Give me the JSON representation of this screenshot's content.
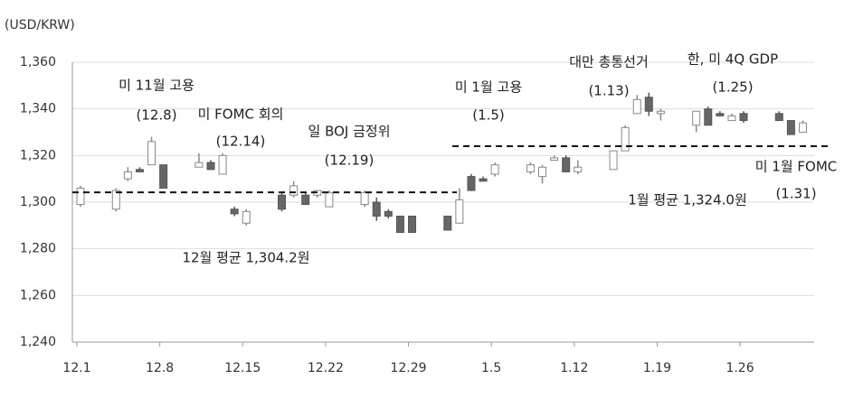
{
  "chart_data": {
    "type": "candlestick",
    "y_label": "(USD/KRW)",
    "ylim": [
      1240,
      1360
    ],
    "yticks": [
      {
        "value": 1240,
        "label": "1,240"
      },
      {
        "value": 1260,
        "label": "1,260"
      },
      {
        "value": 1280,
        "label": "1,280"
      },
      {
        "value": 1300,
        "label": "1,300"
      },
      {
        "value": 1320,
        "label": "1,320"
      },
      {
        "value": 1340,
        "label": "1,340"
      },
      {
        "value": 1360,
        "label": "1,360"
      }
    ],
    "xticks": [
      "12.1",
      "12.8",
      "12.15",
      "12.22",
      "12.29",
      "1.5",
      "1.12",
      "1.19",
      "1.26"
    ],
    "grid": true,
    "up_color": "#ffffff",
    "down_color": "#666666",
    "x": [
      "12.1",
      "12.4",
      "12.5",
      "12.6",
      "12.7",
      "12.8",
      "12.11",
      "12.12",
      "12.13",
      "12.14",
      "12.15",
      "12.18",
      "12.19",
      "12.20",
      "12.21",
      "12.22",
      "12.25",
      "12.26",
      "12.27",
      "12.28",
      "12.29",
      "1.1",
      "1.2",
      "1.3",
      "1.4",
      "1.5",
      "1.8",
      "1.9",
      "1.10",
      "1.11",
      "1.12",
      "1.15",
      "1.16",
      "1.17",
      "1.18",
      "1.19",
      "1.22",
      "1.23",
      "1.24",
      "1.25",
      "1.26",
      "1.29",
      "1.30",
      "1.31"
    ],
    "open": [
      1299,
      1297,
      1310,
      1314,
      1316,
      1316,
      1315,
      1317,
      1312,
      1297,
      1291,
      1303,
      1303,
      1303,
      1303,
      1298,
      1299,
      1300,
      1296,
      1294,
      1294,
      1294,
      1291,
      1311,
      1310,
      1312,
      1313,
      1311,
      1318,
      1319,
      1313,
      1314,
      1322,
      1338,
      1345,
      1338,
      1333,
      1340,
      1338,
      1335,
      1338,
      1338,
      1335,
      1330
    ],
    "high": [
      1307,
      1306,
      1315,
      1315,
      1328,
      1316,
      1321,
      1318,
      1321,
      1298,
      1297,
      1304,
      1309,
      1304,
      1305,
      1305,
      1305,
      1302,
      1297,
      1294,
      1294,
      1294,
      1306,
      1312,
      1311,
      1317,
      1317,
      1316,
      1320,
      1320,
      1318,
      1322,
      1333,
      1346,
      1347,
      1340,
      1339,
      1341,
      1339,
      1338,
      1339,
      1339,
      1335,
      1335
    ],
    "low": [
      1298,
      1296,
      1309,
      1313,
      1316,
      1306,
      1315,
      1314,
      1312,
      1294,
      1290,
      1296,
      1302,
      1299,
      1302,
      1298,
      1298,
      1292,
      1293,
      1287,
      1287,
      1288,
      1291,
      1305,
      1309,
      1311,
      1312,
      1308,
      1318,
      1313,
      1312,
      1314,
      1322,
      1338,
      1337,
      1335,
      1330,
      1333,
      1337,
      1335,
      1334,
      1335,
      1329,
      1330
    ],
    "close": [
      1306,
      1305,
      1313,
      1313,
      1326,
      1306,
      1317,
      1314,
      1320,
      1295,
      1296,
      1297,
      1307,
      1299,
      1305,
      1304,
      1304,
      1294,
      1294,
      1287,
      1287,
      1288,
      1301,
      1305,
      1309,
      1316,
      1316,
      1315,
      1319,
      1313,
      1315,
      1322,
      1332,
      1344,
      1339,
      1339,
      1339,
      1333,
      1337,
      1337,
      1335,
      1335,
      1329,
      1334
    ],
    "averages": [
      {
        "label": "12월 평균 1,304.2원",
        "value": 1304.2
      },
      {
        "label": "1월 평균 1,324.0원",
        "value": 1324.0
      }
    ],
    "annotations": [
      {
        "text": "미 11월 고용",
        "date": "(12.8)"
      },
      {
        "text": "미 FOMC 회의",
        "date": "(12.14)"
      },
      {
        "text": "일 BOJ 금정위",
        "date": "(12.19)"
      },
      {
        "text": "미 1월 고용",
        "date": "(1.5)"
      },
      {
        "text": "대만 총통선거",
        "date": "(1.13)"
      },
      {
        "text": "한, 미 4Q GDP",
        "date": "(1.25)"
      },
      {
        "text": "미 1월 FOMC",
        "date": "(1.31)"
      }
    ]
  }
}
